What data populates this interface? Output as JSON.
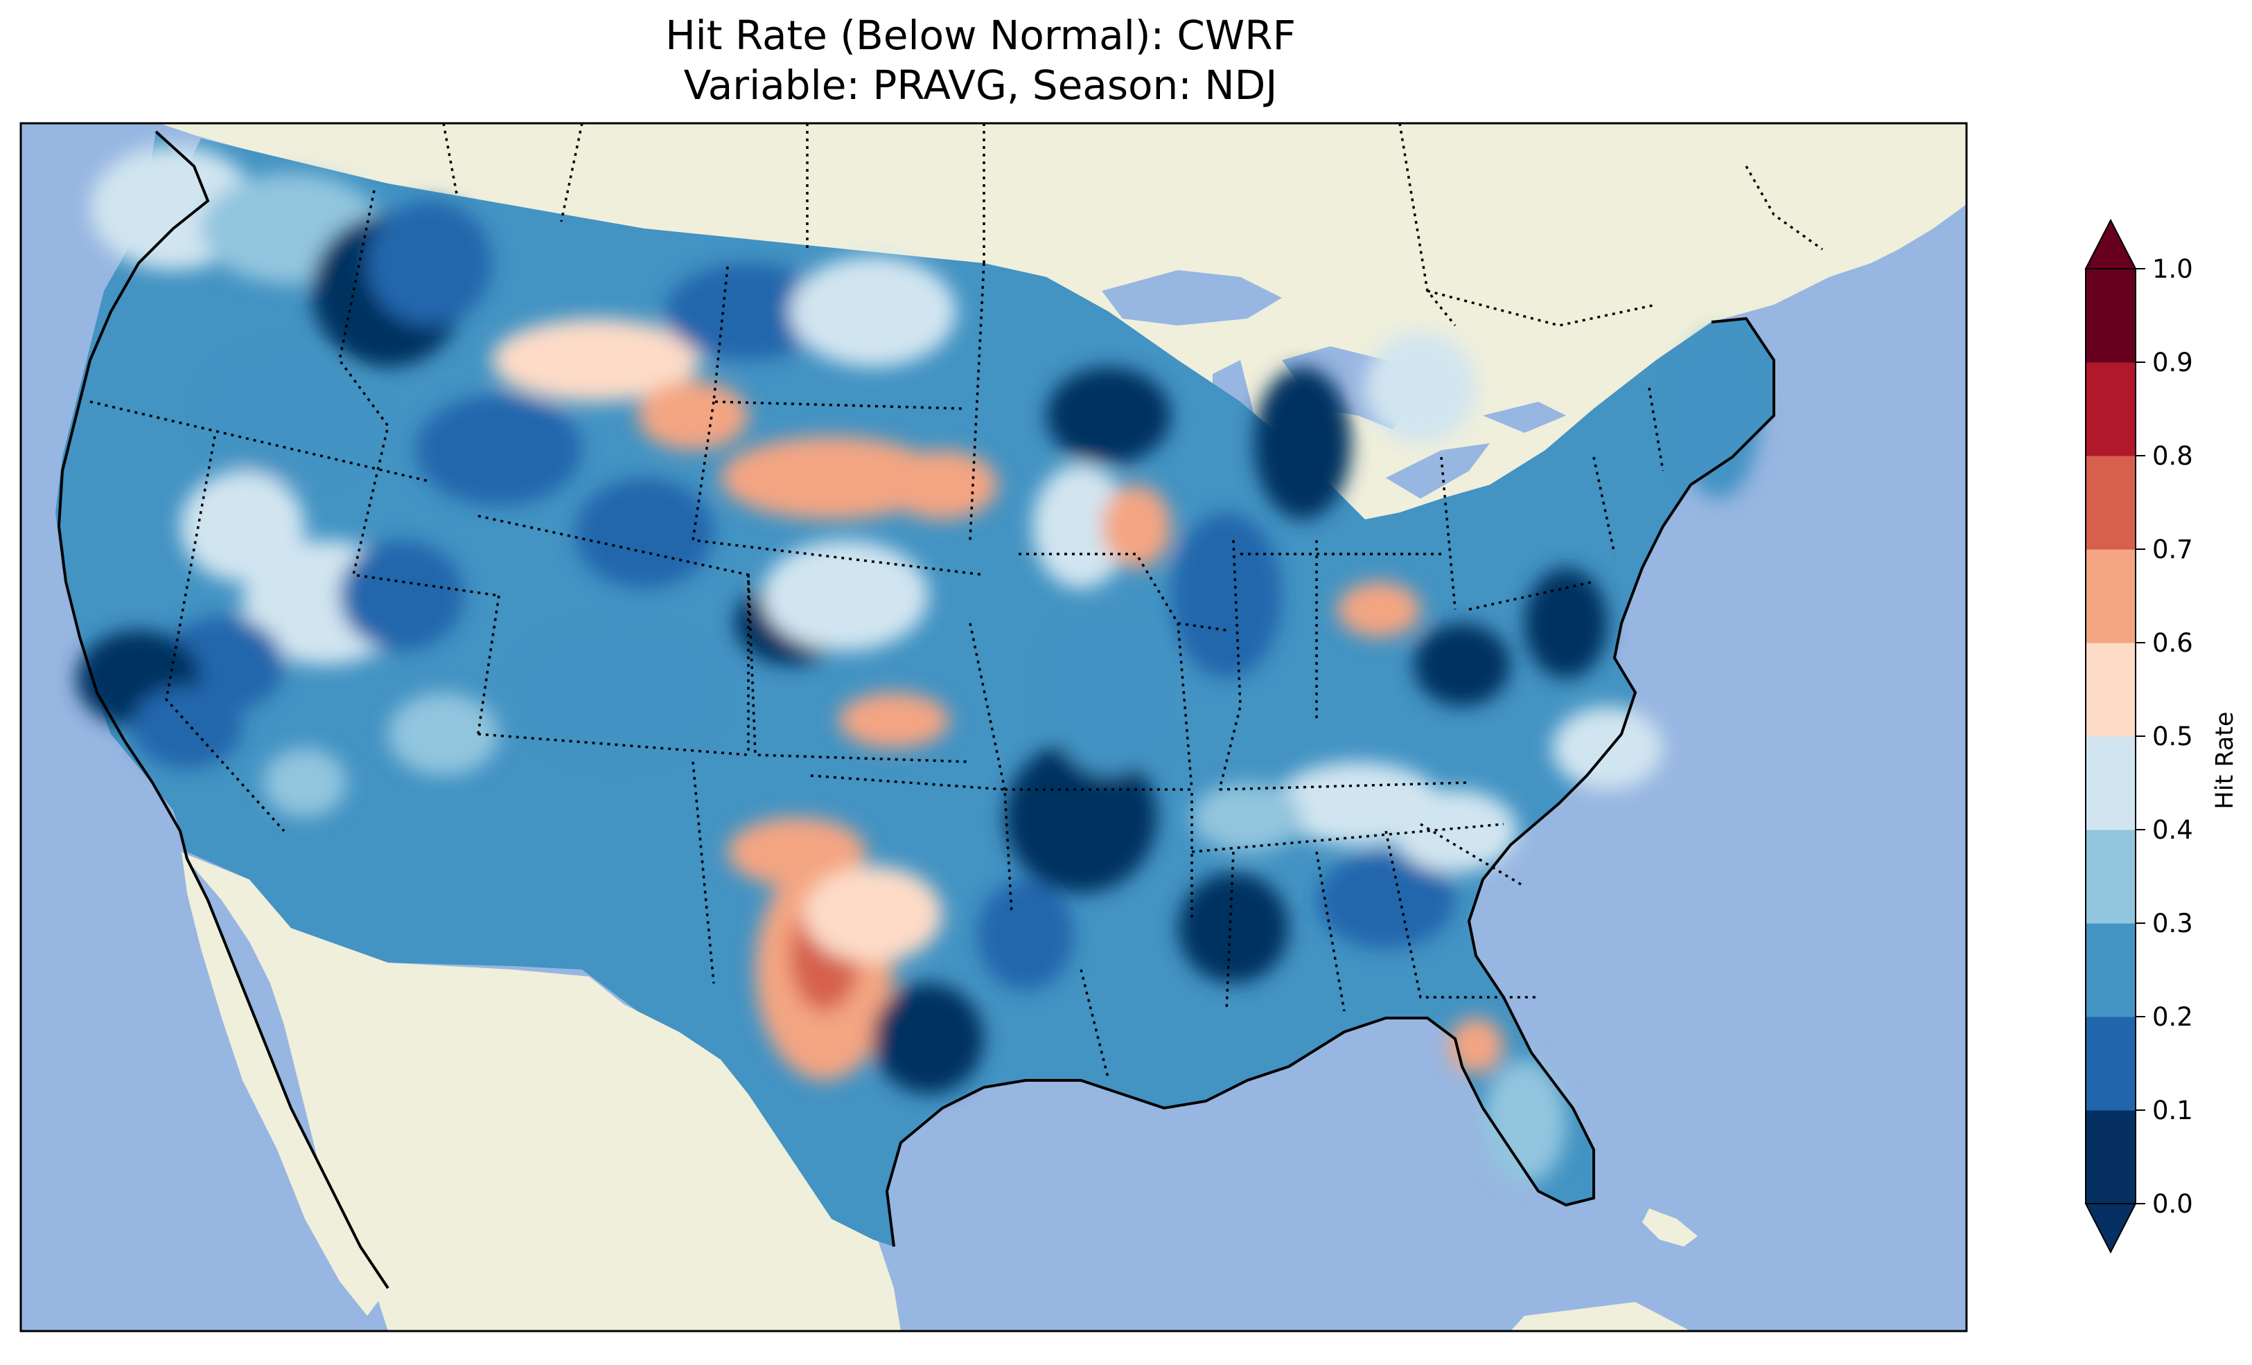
{
  "title": {
    "line1": "Hit Rate (Below Normal): CWRF",
    "line2": "Variable: PRAVG, Season: NDJ"
  },
  "colorbar": {
    "label": "Hit Rate",
    "ticks": [
      "0.0",
      "0.1",
      "0.2",
      "0.3",
      "0.4",
      "0.5",
      "0.6",
      "0.7",
      "0.8",
      "0.9",
      "1.0"
    ],
    "bins": [
      {
        "range": [
          0.0,
          0.1
        ],
        "color": "#053061"
      },
      {
        "range": [
          0.1,
          0.2
        ],
        "color": "#2166ac"
      },
      {
        "range": [
          0.2,
          0.3
        ],
        "color": "#4393c3"
      },
      {
        "range": [
          0.3,
          0.4
        ],
        "color": "#92c5de"
      },
      {
        "range": [
          0.4,
          0.5
        ],
        "color": "#d1e5f0"
      },
      {
        "range": [
          0.5,
          0.6
        ],
        "color": "#fddbc7"
      },
      {
        "range": [
          0.6,
          0.7
        ],
        "color": "#f4a582"
      },
      {
        "range": [
          0.7,
          0.8
        ],
        "color": "#d6604d"
      },
      {
        "range": [
          0.8,
          0.9
        ],
        "color": "#b2182b"
      },
      {
        "range": [
          0.9,
          1.0
        ],
        "color": "#67001f"
      }
    ],
    "extend": "both"
  },
  "map": {
    "ocean_color": "#97b6e1",
    "land_color": "#efefdb",
    "lake_color": "#97b6e1",
    "state_borders": "dotted",
    "coastlines": "solid"
  }
}
